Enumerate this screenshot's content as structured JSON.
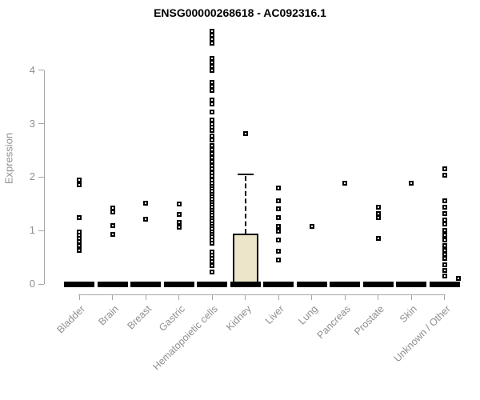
{
  "title": "ENSG00000268618 - AC092316.1",
  "y_axis": {
    "label": "Expression",
    "ticks": [
      0,
      1,
      2,
      3,
      4
    ]
  },
  "colors": {
    "title_text": "#000000",
    "axis_line": "#a6a6a6",
    "axis_text": "#8f8f8f",
    "box_fill": "#ece5c9",
    "box_border": "#000000",
    "point_fill": "#ffffff",
    "point_border": "#000000",
    "collapsed_bar": "#000000",
    "background": "#ffffff"
  },
  "chart_data": {
    "type": "boxplot",
    "title": "ENSG00000268618 - AC092316.1",
    "xlabel": "",
    "ylabel": "Expression",
    "ylim": [
      0,
      4.8
    ],
    "yticks": [
      0,
      1,
      2,
      3,
      4
    ],
    "grid": false,
    "legend": null,
    "marker": "open-square",
    "categories": [
      "Bladder",
      "Brain",
      "Breast",
      "Gastric",
      "Hematopoietic cells",
      "Kidney",
      "Liver",
      "Lung",
      "Pancreas",
      "Prostate",
      "Skin",
      "Unknown / Other"
    ],
    "series": [
      {
        "category": "Bladder",
        "box": {
          "q1": 0,
          "median": 0,
          "q3": 0,
          "whisker_low": 0,
          "whisker_high": 0
        },
        "points": [
          1.95,
          1.86,
          1.24,
          0.97,
          0.91,
          0.85,
          0.79,
          0.72,
          0.63
        ]
      },
      {
        "category": "Brain",
        "box": {
          "q1": 0,
          "median": 0,
          "q3": 0,
          "whisker_low": 0,
          "whisker_high": 0
        },
        "points": [
          1.42,
          1.34,
          1.1,
          0.93
        ]
      },
      {
        "category": "Breast",
        "box": {
          "q1": 0,
          "median": 0,
          "q3": 0,
          "whisker_low": 0,
          "whisker_high": 0
        },
        "points": [
          1.51,
          1.21
        ]
      },
      {
        "category": "Gastric",
        "box": {
          "q1": 0,
          "median": 0,
          "q3": 0,
          "whisker_low": 0,
          "whisker_high": 0
        },
        "points": [
          1.5,
          1.3,
          1.16,
          1.06
        ]
      },
      {
        "category": "Hematopoietic cells",
        "box": {
          "q1": 0,
          "median": 0,
          "q3": 0,
          "whisker_low": 0,
          "whisker_high": 0
        },
        "points": [
          4.73,
          4.66,
          4.58,
          4.51,
          4.22,
          4.15,
          4.07,
          4.0,
          3.77,
          3.7,
          3.62,
          3.44,
          3.37,
          3.22,
          3.07,
          3.0,
          2.93,
          2.87,
          2.77,
          2.7,
          2.59,
          2.52,
          2.44,
          2.37,
          2.29,
          2.22,
          2.15,
          2.08,
          2.02,
          1.95,
          1.89,
          1.83,
          1.78,
          1.73,
          1.68,
          1.63,
          1.58,
          1.53,
          1.48,
          1.43,
          1.38,
          1.33,
          1.28,
          1.23,
          1.18,
          1.13,
          1.08,
          1.03,
          0.98,
          0.93,
          0.88,
          0.82,
          0.76,
          0.6,
          0.54,
          0.48,
          0.42,
          0.35,
          0.22
        ]
      },
      {
        "category": "Kidney",
        "box": {
          "q1": 0,
          "median": 0,
          "q3": 0.95,
          "whisker_low": 0,
          "whisker_high": 2.05
        },
        "points": [
          2.81
        ]
      },
      {
        "category": "Liver",
        "box": {
          "q1": 0,
          "median": 0,
          "q3": 0,
          "whisker_low": 0,
          "whisker_high": 0
        },
        "points": [
          1.8,
          1.56,
          1.41,
          1.25,
          1.08,
          0.99,
          0.82,
          0.61,
          0.45
        ]
      },
      {
        "category": "Lung",
        "box": {
          "q1": 0,
          "median": 0,
          "q3": 0,
          "whisker_low": 0,
          "whisker_high": 0
        },
        "points": [
          1.08
        ]
      },
      {
        "category": "Pancreas",
        "box": {
          "q1": 0,
          "median": 0,
          "q3": 0,
          "whisker_low": 0,
          "whisker_high": 0
        },
        "points": [
          1.89
        ]
      },
      {
        "category": "Prostate",
        "box": {
          "q1": 0,
          "median": 0,
          "q3": 0,
          "whisker_low": 0,
          "whisker_high": 0
        },
        "points": [
          1.43,
          1.32,
          1.25,
          0.85
        ]
      },
      {
        "category": "Skin",
        "box": {
          "q1": 0,
          "median": 0,
          "q3": 0,
          "whisker_low": 0,
          "whisker_high": 0
        },
        "points": [
          1.88
        ]
      },
      {
        "category": "Unknown / Other",
        "box": {
          "q1": 0,
          "median": 0,
          "q3": 0,
          "whisker_low": 0,
          "whisker_high": 0
        },
        "points": [
          2.16,
          2.03,
          1.56,
          1.44,
          1.32,
          1.2,
          1.13,
          1.0,
          0.91,
          0.82,
          0.72,
          0.63,
          0.55,
          0.48,
          0.36,
          0.26,
          0.15
        ],
        "jitter_points": [
          {
            "v": 0.1,
            "dx": 17
          }
        ]
      }
    ]
  }
}
